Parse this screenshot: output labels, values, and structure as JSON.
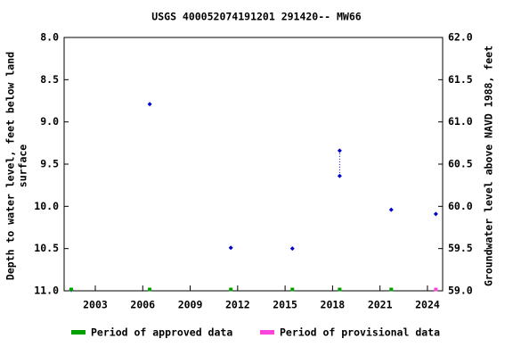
{
  "chart_data": {
    "type": "scatter",
    "title": "USGS 400052074191201 291420-- MW66",
    "ylabel": [
      "Depth to water level, feet below land",
      "surface"
    ],
    "y2label": "Groundwater level above NAVD 1988, feet",
    "xlim": [
      2001.03,
      2024.96
    ],
    "xticks": [
      2003,
      2006,
      2009,
      2012,
      2015,
      2018,
      2021,
      2024
    ],
    "ylim": [
      8.0,
      11.0
    ],
    "yticks": [
      {
        "value": 8,
        "label": "8.0"
      },
      8.5,
      {
        "value": 9,
        "label": "9.0"
      },
      9.5,
      {
        "value": 10,
        "label": "10.0"
      },
      10.5,
      {
        "value": 11,
        "label": "11.0"
      }
    ],
    "y2lim": [
      62.0,
      59.0
    ],
    "y2ticks": [
      {
        "value": 62,
        "label": "62.0"
      },
      61.5,
      {
        "value": 61,
        "label": "61.0"
      },
      60.5,
      {
        "value": 60,
        "label": "60.0"
      },
      59.5,
      {
        "value": 59,
        "label": "59.0"
      }
    ],
    "grid": false,
    "series": [
      {
        "color": "#0000cc",
        "x": [
          2001.48,
          2006.44,
          2011.57,
          2015.46,
          2018.45,
          2018.45,
          2021.71,
          2024.53
        ],
        "values": [
          10.99,
          8.79,
          10.49,
          10.5,
          9.34,
          9.64,
          10.04,
          10.09
        ]
      }
    ],
    "periods": [
      {
        "name": "Period of approved data",
        "color": "#00a000",
        "x": [
          2001.48,
          2006.44,
          2011.57,
          2015.46,
          2018.45,
          2021.71
        ]
      },
      {
        "name": "Period of provisional data",
        "color": "#ff44dd",
        "x": [
          2024.53
        ]
      }
    ]
  }
}
